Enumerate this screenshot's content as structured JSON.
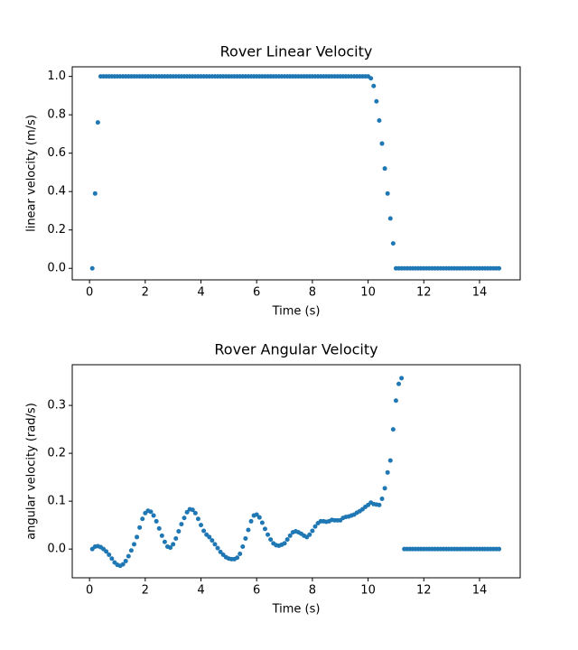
{
  "chart_data": [
    {
      "type": "scatter",
      "title": "Rover Linear Velocity",
      "x_label": "Time (s)",
      "y_label": "linear velocity (m/s)",
      "color": "#1f77b4",
      "xlim": [
        -0.62,
        15.46
      ],
      "ylim": [
        -0.06,
        1.05
      ],
      "xticks": [
        0,
        2,
        4,
        6,
        8,
        10,
        12,
        14
      ],
      "yticks": [
        {
          "value": 0,
          "label": "0.0"
        },
        0.2,
        0.4,
        0.6,
        0.8,
        {
          "value": 1,
          "label": "1.0"
        }
      ],
      "x": [
        0.1,
        0.2,
        0.3,
        0.4,
        0.5,
        0.6,
        0.7,
        0.8,
        0.9,
        1.0,
        1.1,
        1.2,
        1.3,
        1.4,
        1.5,
        1.6,
        1.7,
        1.8,
        1.9,
        2.0,
        2.1,
        2.2,
        2.3,
        2.4,
        2.5,
        2.6,
        2.7,
        2.8,
        2.9,
        3.0,
        3.1,
        3.2,
        3.3,
        3.4,
        3.5,
        3.6,
        3.7,
        3.8,
        3.9,
        4.0,
        4.1,
        4.2,
        4.3,
        4.4,
        4.5,
        4.6,
        4.7,
        4.8,
        4.9,
        5.0,
        5.1,
        5.2,
        5.3,
        5.4,
        5.5,
        5.6,
        5.7,
        5.8,
        5.9,
        6.0,
        6.1,
        6.2,
        6.3,
        6.4,
        6.5,
        6.6,
        6.7,
        6.8,
        6.9,
        7.0,
        7.1,
        7.2,
        7.3,
        7.4,
        7.5,
        7.6,
        7.7,
        7.8,
        7.9,
        8.0,
        8.1,
        8.2,
        8.3,
        8.4,
        8.5,
        8.6,
        8.7,
        8.8,
        8.9,
        9.0,
        9.1,
        9.2,
        9.3,
        9.4,
        9.5,
        9.6,
        9.7,
        9.8,
        9.9,
        10.0,
        10.1,
        10.2,
        10.3,
        10.4,
        10.5,
        10.6,
        10.7,
        10.8,
        10.9,
        11.0,
        11.1,
        11.2,
        11.3,
        11.4,
        11.5,
        11.6,
        11.7,
        11.8,
        11.9,
        12.0,
        12.1,
        12.2,
        12.3,
        12.4,
        12.5,
        12.6,
        12.7,
        12.8,
        12.9,
        13.0,
        13.1,
        13.2,
        13.3,
        13.4,
        13.5,
        13.6,
        13.7,
        13.8,
        13.9,
        14.0,
        14.1,
        14.2,
        14.3,
        14.4,
        14.5,
        14.6,
        14.7
      ],
      "values": [
        0,
        0.39,
        0.76,
        1,
        1,
        1,
        1,
        1,
        1,
        1,
        1,
        1,
        1,
        1,
        1,
        1,
        1,
        1,
        1,
        1,
        1,
        1,
        1,
        1,
        1,
        1,
        1,
        1,
        1,
        1,
        1,
        1,
        1,
        1,
        1,
        1,
        1,
        1,
        1,
        1,
        1,
        1,
        1,
        1,
        1,
        1,
        1,
        1,
        1,
        1,
        1,
        1,
        1,
        1,
        1,
        1,
        1,
        1,
        1,
        1,
        1,
        1,
        1,
        1,
        1,
        1,
        1,
        1,
        1,
        1,
        1,
        1,
        1,
        1,
        1,
        1,
        1,
        1,
        1,
        1,
        1,
        1,
        1,
        1,
        1,
        1,
        1,
        1,
        1,
        1,
        1,
        1,
        1,
        1,
        1,
        1,
        1,
        1,
        1,
        1,
        0.99,
        0.95,
        0.87,
        0.77,
        0.65,
        0.52,
        0.39,
        0.26,
        0.13,
        0,
        0,
        0,
        0,
        0,
        0,
        0,
        0,
        0,
        0,
        0,
        0,
        0,
        0,
        0,
        0,
        0,
        0,
        0,
        0,
        0,
        0,
        0,
        0,
        0,
        0,
        0,
        0,
        0,
        0,
        0,
        0,
        0,
        0,
        0,
        0,
        0,
        0
      ]
    },
    {
      "type": "scatter",
      "title": "Rover Angular Velocity",
      "x_label": "Time (s)",
      "y_label": "angular velocity (rad/s)",
      "color": "#1f77b4",
      "xlim": [
        -0.62,
        15.46
      ],
      "ylim": [
        -0.06,
        0.385
      ],
      "xticks": [
        0,
        2,
        4,
        6,
        8,
        10,
        12,
        14
      ],
      "yticks": [
        {
          "value": 0,
          "label": "0.0"
        },
        0.1,
        0.2,
        0.3
      ],
      "x": [
        0.1,
        0.2,
        0.3,
        0.4,
        0.5,
        0.6,
        0.7,
        0.8,
        0.9,
        1.0,
        1.1,
        1.2,
        1.3,
        1.4,
        1.5,
        1.6,
        1.7,
        1.8,
        1.9,
        2.0,
        2.1,
        2.2,
        2.3,
        2.4,
        2.5,
        2.6,
        2.7,
        2.8,
        2.9,
        3.0,
        3.1,
        3.2,
        3.3,
        3.4,
        3.5,
        3.6,
        3.7,
        3.8,
        3.9,
        4.0,
        4.1,
        4.2,
        4.3,
        4.4,
        4.5,
        4.6,
        4.7,
        4.8,
        4.9,
        5.0,
        5.1,
        5.2,
        5.3,
        5.4,
        5.5,
        5.6,
        5.7,
        5.8,
        5.9,
        6.0,
        6.1,
        6.2,
        6.3,
        6.4,
        6.5,
        6.6,
        6.7,
        6.8,
        6.9,
        7.0,
        7.1,
        7.2,
        7.3,
        7.4,
        7.5,
        7.6,
        7.7,
        7.8,
        7.9,
        8.0,
        8.1,
        8.2,
        8.3,
        8.4,
        8.5,
        8.6,
        8.7,
        8.8,
        8.9,
        9.0,
        9.1,
        9.2,
        9.3,
        9.4,
        9.5,
        9.6,
        9.7,
        9.8,
        9.9,
        10.0,
        10.1,
        10.2,
        10.3,
        10.4,
        10.5,
        10.6,
        10.7,
        10.8,
        10.9,
        11.0,
        11.1,
        11.2,
        11.3,
        11.4,
        11.5,
        11.6,
        11.7,
        11.8,
        11.9,
        12.0,
        12.1,
        12.2,
        12.3,
        12.4,
        12.5,
        12.6,
        12.7,
        12.8,
        12.9,
        13.0,
        13.1,
        13.2,
        13.3,
        13.4,
        13.5,
        13.6,
        13.7,
        13.8,
        13.9,
        14.0,
        14.1,
        14.2,
        14.3,
        14.4,
        14.5,
        14.6,
        14.7
      ],
      "values": [
        0,
        0.005,
        0.006,
        0.004,
        0,
        -0.005,
        -0.012,
        -0.02,
        -0.028,
        -0.033,
        -0.035,
        -0.032,
        -0.025,
        -0.015,
        -0.003,
        0.01,
        0.025,
        0.045,
        0.063,
        0.075,
        0.08,
        0.078,
        0.07,
        0.058,
        0.043,
        0.028,
        0.015,
        0.005,
        0.003,
        0.01,
        0.022,
        0.037,
        0.052,
        0.065,
        0.077,
        0.083,
        0.082,
        0.075,
        0.063,
        0.05,
        0.038,
        0.03,
        0.025,
        0.018,
        0.01,
        0.002,
        -0.006,
        -0.012,
        -0.017,
        -0.02,
        -0.021,
        -0.021,
        -0.018,
        -0.01,
        0.005,
        0.022,
        0.04,
        0.058,
        0.07,
        0.072,
        0.066,
        0.055,
        0.042,
        0.03,
        0.02,
        0.012,
        0.008,
        0.007,
        0.009,
        0.012,
        0.02,
        0.028,
        0.035,
        0.037,
        0.035,
        0.032,
        0.028,
        0.025,
        0.03,
        0.038,
        0.047,
        0.054,
        0.058,
        0.058,
        0.057,
        0.058,
        0.061,
        0.06,
        0.06,
        0.06,
        0.065,
        0.067,
        0.068,
        0.07,
        0.072,
        0.076,
        0.079,
        0.083,
        0.088,
        0.092,
        0.097,
        0.094,
        0.093,
        0.092,
        0.105,
        0.127,
        0.16,
        0.185,
        0.25,
        0.31,
        0.345,
        0.357,
        0,
        0,
        0,
        0,
        0,
        0,
        0,
        0,
        0,
        0,
        0,
        0,
        0,
        0,
        0,
        0,
        0,
        0,
        0,
        0,
        0,
        0,
        0,
        0,
        0,
        0,
        0,
        0,
        0,
        0,
        0,
        0,
        0,
        0,
        0
      ]
    }
  ]
}
